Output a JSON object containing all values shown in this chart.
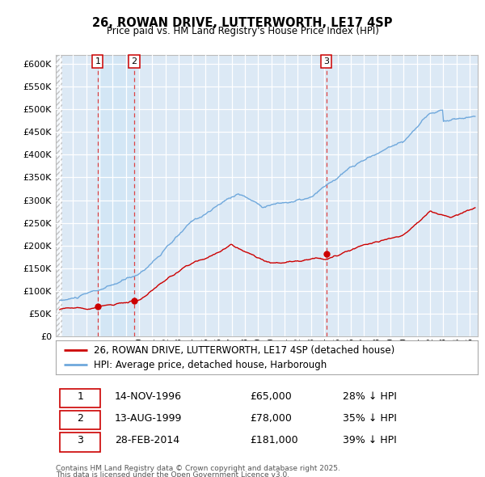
{
  "title": "26, ROWAN DRIVE, LUTTERWORTH, LE17 4SP",
  "subtitle": "Price paid vs. HM Land Registry's House Price Index (HPI)",
  "ylim": [
    0,
    620000
  ],
  "yticks": [
    0,
    50000,
    100000,
    150000,
    200000,
    250000,
    300000,
    350000,
    400000,
    450000,
    500000,
    550000,
    600000
  ],
  "xlim_start": 1993.7,
  "xlim_end": 2025.6,
  "background_color": "#dce9f5",
  "grid_color": "#ffffff",
  "hpi_line_color": "#6fa8dc",
  "price_line_color": "#cc0000",
  "sale_marker_color": "#cc0000",
  "dashed_line_color": "#cc0000",
  "shade_between_color": "#cfe0f0",
  "transactions": [
    {
      "num": 1,
      "date_label": "14-NOV-1996",
      "date_x": 1996.87,
      "price": 65000,
      "pct": "28%"
    },
    {
      "num": 2,
      "date_label": "13-AUG-1999",
      "date_x": 1999.62,
      "price": 78000,
      "pct": "35%"
    },
    {
      "num": 3,
      "date_label": "28-FEB-2014",
      "date_x": 2014.16,
      "price": 181000,
      "pct": "39%"
    }
  ],
  "legend_line1": "26, ROWAN DRIVE, LUTTERWORTH, LE17 4SP (detached house)",
  "legend_line2": "HPI: Average price, detached house, Harborough",
  "table_rows": [
    {
      "num": "1",
      "date": "14-NOV-1996",
      "price": "£65,000",
      "pct": "28% ↓ HPI"
    },
    {
      "num": "2",
      "date": "13-AUG-1999",
      "price": "£78,000",
      "pct": "35% ↓ HPI"
    },
    {
      "num": "3",
      "date": "28-FEB-2014",
      "price": "£181,000",
      "pct": "39% ↓ HPI"
    }
  ],
  "footer1": "Contains HM Land Registry data © Crown copyright and database right 2025.",
  "footer2": "This data is licensed under the Open Government Licence v3.0."
}
